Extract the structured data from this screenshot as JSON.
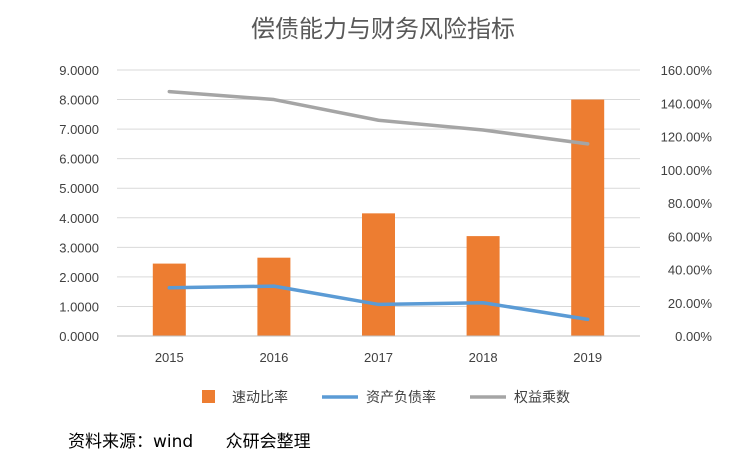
{
  "chart_data": {
    "type": "bar",
    "title": "偿债能力与财务风险指标",
    "categories": [
      "2015",
      "2016",
      "2017",
      "2018",
      "2019"
    ],
    "series": [
      {
        "name": "速动比率",
        "kind": "bar",
        "axis": "left",
        "color": "#ED7D31",
        "values": [
          2.45,
          2.65,
          4.15,
          3.38,
          8.0
        ]
      },
      {
        "name": "资产负债率",
        "kind": "line",
        "axis": "right",
        "color": "#5B9BD5",
        "values": [
          0.29,
          0.3,
          0.19,
          0.2,
          0.1
        ]
      },
      {
        "name": "权益乘数",
        "kind": "line",
        "axis": "left",
        "color": "#A5A5A5",
        "values": [
          8.27,
          8.0,
          7.3,
          6.97,
          6.5
        ]
      }
    ],
    "y_left": {
      "min": 0,
      "max": 9,
      "step": 1,
      "tick_labels": [
        "0.0000",
        "1.0000",
        "2.0000",
        "3.0000",
        "4.0000",
        "5.0000",
        "6.0000",
        "7.0000",
        "8.0000",
        "9.0000"
      ]
    },
    "y_right": {
      "min": 0,
      "max": 1.6,
      "step": 0.2,
      "tick_labels": [
        "0.00%",
        "20.00%",
        "40.00%",
        "60.00%",
        "80.00%",
        "100.00%",
        "120.00%",
        "140.00%",
        "160.00%"
      ]
    },
    "grid": true,
    "legend_position": "bottom",
    "source_note": "资料来源：wind      众研会整理"
  }
}
